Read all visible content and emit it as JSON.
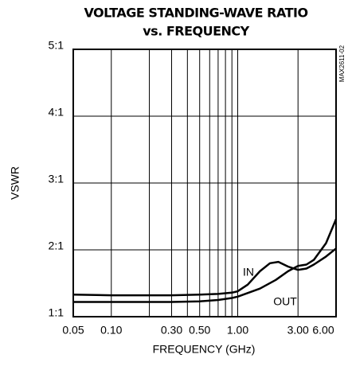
{
  "chart_data": {
    "type": "line",
    "title": [
      "VOLTAGE STANDING-WAVE RATIO",
      "vs. FREQUENCY"
    ],
    "x_label": "FREQUENCY (GHz)",
    "y_label": "VSWR",
    "annotation": "MAX2611-02",
    "x_log": true,
    "xlim": [
      0.05,
      6
    ],
    "ylim": [
      1,
      5
    ],
    "xticks": [
      0.05,
      {
        "value": 0.1,
        "label": "0.10"
      },
      {
        "value": 0.3,
        "label": "0.30"
      },
      {
        "value": 0.5,
        "label": "0.50"
      },
      {
        "value": 1,
        "label": "1.00"
      },
      {
        "value": 3,
        "label": "3.00"
      },
      {
        "value": 6,
        "label": "6.00"
      }
    ],
    "minor_xticks": [
      0.2,
      0.4,
      0.6,
      0.7,
      0.8,
      0.9
    ],
    "yticks": [
      {
        "value": 1,
        "label": "1:1"
      },
      {
        "value": 2,
        "label": "2:1"
      },
      {
        "value": 3,
        "label": "3:1"
      },
      {
        "value": 4,
        "label": "4:1"
      },
      {
        "value": 5,
        "label": "5:1"
      }
    ],
    "grid": true,
    "series": [
      {
        "name": "IN",
        "color": "#000000",
        "x": [
          0.05,
          0.1,
          0.3,
          0.5,
          0.7,
          0.9,
          1.0,
          1.2,
          1.5,
          1.8,
          2.1,
          2.5,
          3.0,
          3.5,
          4.0,
          5.0,
          6.0
        ],
        "values": [
          1.33,
          1.32,
          1.32,
          1.33,
          1.34,
          1.36,
          1.38,
          1.48,
          1.68,
          1.8,
          1.82,
          1.75,
          1.7,
          1.72,
          1.78,
          1.9,
          2.02
        ]
      },
      {
        "name": "OUT",
        "color": "#000000",
        "x": [
          0.05,
          0.1,
          0.3,
          0.5,
          0.7,
          0.9,
          1.0,
          1.5,
          2.0,
          2.5,
          3.0,
          3.5,
          4.0,
          5.0,
          6.0
        ],
        "values": [
          1.22,
          1.22,
          1.22,
          1.23,
          1.25,
          1.28,
          1.3,
          1.42,
          1.55,
          1.68,
          1.76,
          1.78,
          1.85,
          2.1,
          2.46
        ]
      }
    ]
  }
}
